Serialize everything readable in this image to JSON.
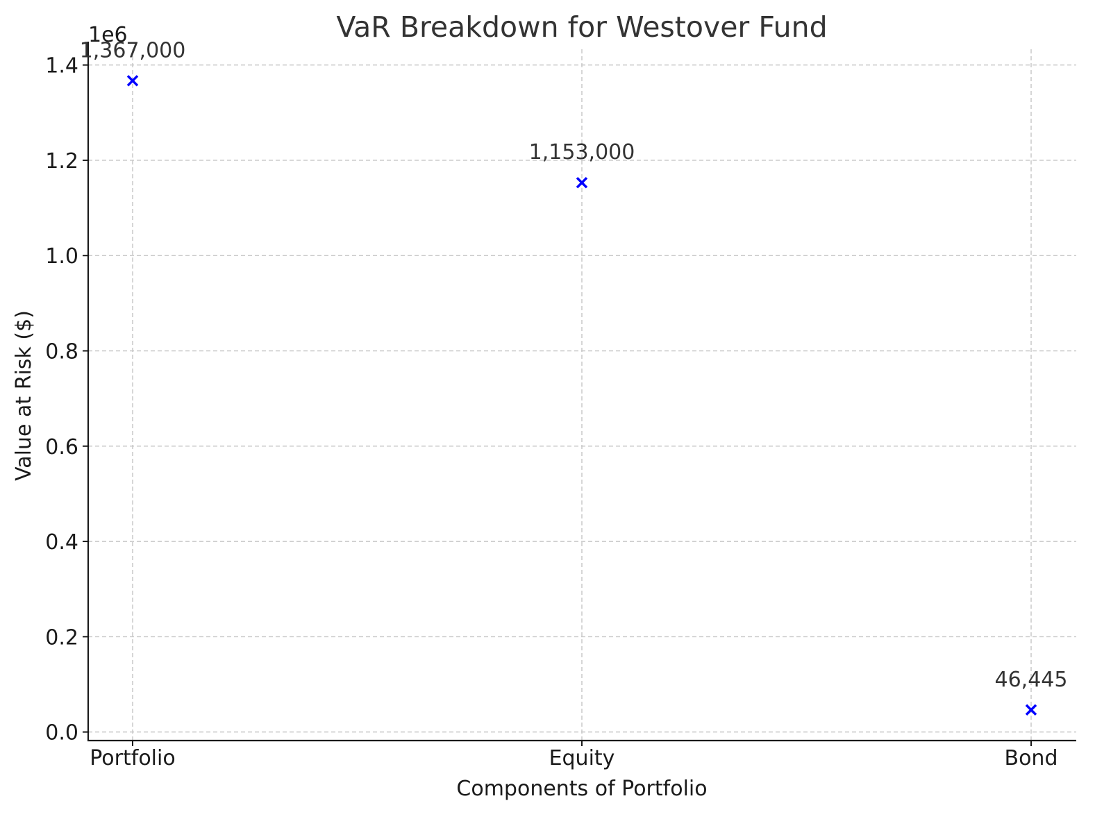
{
  "chart_data": {
    "type": "scatter",
    "title": "VaR Breakdown for Westover Fund",
    "xlabel": "Components of Portfolio",
    "ylabel": "Value at Risk ($)",
    "categories": [
      "Portfolio",
      "Equity",
      "Bond"
    ],
    "values": [
      1367000,
      1153000,
      46445
    ],
    "data_labels": [
      "1,367,000",
      "1,153,000",
      "46,445"
    ],
    "y_offset_text": "1e6",
    "y_scale": 1000000,
    "ylim": [
      -0.018,
      1.433
    ],
    "yticks": [
      0.0,
      0.2,
      0.4,
      0.6,
      0.8,
      1.0,
      1.2,
      1.4
    ],
    "ytick_labels": [
      "0.0",
      "0.2",
      "0.4",
      "0.6",
      "0.8",
      "1.0",
      "1.2",
      "1.4"
    ],
    "marker": "x",
    "marker_color": "#0000ff",
    "grid": true,
    "legend": "none"
  }
}
